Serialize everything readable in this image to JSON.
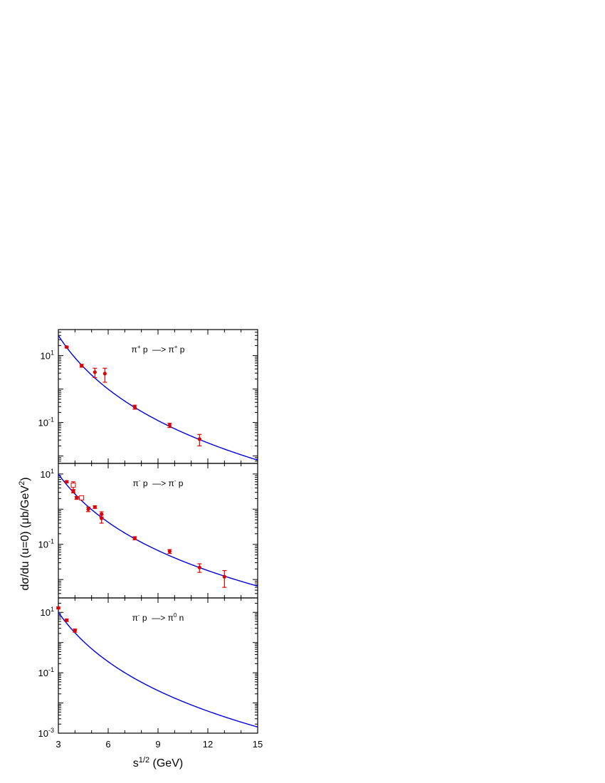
{
  "chart_data": {
    "type": "scatter",
    "xlabel": "s^{1/2} (GeV)",
    "xlabel_main": "s",
    "xlabel_sup": "1/2",
    "xlabel_tail": " (GeV)",
    "ylabel": "dσ/du (u=0) (μb/GeV^2)",
    "ylabel_main": "dσ/du (u=0) (μb/GeV",
    "ylabel_sup": "2",
    "ylabel_tail": ")",
    "xlim": [
      3,
      15
    ],
    "x_ticks": [
      "3",
      "6",
      "9",
      "12",
      "15"
    ],
    "x_tick_values": [
      3,
      6,
      9,
      12,
      15
    ],
    "colors": {
      "curve": "#0000dd",
      "data": "#dd0000",
      "frame": "#000000"
    },
    "panels": [
      {
        "reaction": "π+ p → π+ p",
        "label_parts": [
          "π",
          "+",
          " p  —> π",
          "+",
          " p"
        ],
        "ylim": [
          0.006,
          60
        ],
        "y_scale": "log",
        "y_ticks": [
          {
            "value": 10,
            "base": "10",
            "exp": "1"
          },
          {
            "value": 0.1,
            "base": "10",
            "exp": "-1"
          }
        ],
        "data_solid": [
          {
            "x": 3.5,
            "y": 18.0,
            "err": 1.0
          },
          {
            "x": 4.4,
            "y": 5.0,
            "err": 0.5
          },
          {
            "x": 5.2,
            "y": 3.2,
            "err": 1.0
          },
          {
            "x": 5.8,
            "y": 2.9,
            "err": 1.3
          },
          {
            "x": 7.6,
            "y": 0.29,
            "err": 0.04
          },
          {
            "x": 9.7,
            "y": 0.083,
            "err": 0.012
          },
          {
            "x": 11.5,
            "y": 0.032,
            "err": 0.012
          }
        ],
        "data_open": [],
        "curve": {
          "model": "power",
          "x0": 3,
          "y0": 40,
          "x1": 15,
          "y1": 0.0075
        }
      },
      {
        "reaction": "π- p → π- p",
        "label_parts": [
          "π",
          "-",
          " p  —> π",
          "-",
          " p"
        ],
        "ylim": [
          0.003,
          20
        ],
        "y_scale": "log",
        "y_ticks": [
          {
            "value": 10,
            "base": "10",
            "exp": "1"
          },
          {
            "value": 0.1,
            "base": "10",
            "exp": "-1"
          }
        ],
        "data_solid": [
          {
            "x": 3.5,
            "y": 6.0,
            "err": 0.4
          },
          {
            "x": 3.9,
            "y": 3.2,
            "err": 0.3
          },
          {
            "x": 4.1,
            "y": 2.1,
            "err": 0.2
          },
          {
            "x": 4.8,
            "y": 1.0,
            "err": 0.15
          },
          {
            "x": 5.2,
            "y": 1.15,
            "err": 0.1
          },
          {
            "x": 5.6,
            "y": 0.72,
            "err": 0.12
          },
          {
            "x": 5.6,
            "y": 0.55,
            "err": 0.15
          },
          {
            "x": 7.6,
            "y": 0.15,
            "err": 0.015
          },
          {
            "x": 9.7,
            "y": 0.063,
            "err": 0.008
          },
          {
            "x": 11.5,
            "y": 0.022,
            "err": 0.006
          },
          {
            "x": 13.0,
            "y": 0.012,
            "err": 0.006
          }
        ],
        "data_open": [
          {
            "x": 3.9,
            "y": 4.8,
            "err": 1.2
          },
          {
            "x": 4.4,
            "y": 2.1,
            "err": 0.2
          }
        ],
        "curve": {
          "model": "power",
          "x0": 3,
          "y0": 10,
          "x1": 15,
          "y1": 0.0065
        }
      },
      {
        "reaction": "π- p → π0 n",
        "label_parts": [
          "π",
          "-",
          " p  —> π",
          "0",
          " n"
        ],
        "ylim": [
          0.001,
          30
        ],
        "y_scale": "log",
        "y_ticks": [
          {
            "value": 10,
            "base": "10",
            "exp": "1"
          },
          {
            "value": 0.1,
            "base": "10",
            "exp": "-1"
          },
          {
            "value": 0.001,
            "base": "10",
            "exp": "-3"
          }
        ],
        "data_solid": [
          {
            "x": 3.0,
            "y": 14.0,
            "err": 1.0
          },
          {
            "x": 3.5,
            "y": 5.5,
            "err": 0.5
          },
          {
            "x": 4.0,
            "y": 2.5,
            "err": 0.3
          }
        ],
        "data_open": [],
        "curve": {
          "model": "power",
          "x0": 3,
          "y0": 10,
          "x1": 15,
          "y1": 0.0016
        }
      }
    ]
  }
}
